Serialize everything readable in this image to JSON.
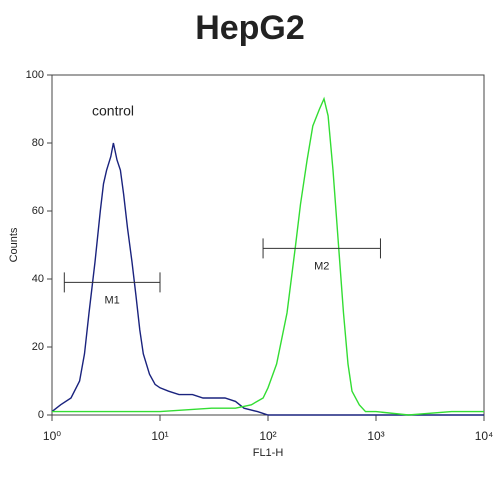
{
  "chart_data": {
    "type": "line",
    "title": "HepG2",
    "x_label": "FL1-H",
    "y_label": "Counts",
    "xscale": "log",
    "xlim": [
      1,
      10000
    ],
    "xticks": [
      {
        "value": 1,
        "label": "10⁰"
      },
      {
        "value": 10,
        "label": "10¹"
      },
      {
        "value": 100,
        "label": "10²"
      },
      {
        "value": 1000,
        "label": "10³"
      },
      {
        "value": 10000,
        "label": "10⁴"
      }
    ],
    "ylim": [
      0,
      100
    ],
    "yticks": [
      0,
      20,
      40,
      60,
      80,
      100
    ],
    "annotation": "control",
    "series": [
      {
        "color": "#1a237e",
        "x": [
          1,
          1.2,
          1.5,
          1.8,
          2.0,
          2.2,
          2.5,
          2.8,
          3.0,
          3.2,
          3.5,
          3.7,
          4.0,
          4.3,
          4.6,
          5,
          5.5,
          6,
          6.5,
          7,
          8,
          9,
          10,
          12,
          15,
          20,
          25,
          30,
          40,
          50,
          60,
          80,
          100,
          200,
          500,
          1000,
          10000
        ],
        "values": [
          1,
          3,
          5,
          10,
          18,
          30,
          45,
          60,
          68,
          72,
          76,
          80,
          75,
          72,
          65,
          55,
          45,
          35,
          25,
          18,
          12,
          9,
          8,
          7,
          6,
          6,
          5,
          5,
          5,
          4,
          2,
          1,
          0,
          0,
          0,
          0,
          0
        ]
      },
      {
        "color": "#33dd33",
        "x": [
          1,
          10,
          30,
          50,
          70,
          90,
          100,
          120,
          150,
          180,
          200,
          230,
          260,
          300,
          330,
          360,
          400,
          450,
          500,
          550,
          600,
          700,
          800,
          1000,
          2000,
          5000,
          10000
        ],
        "values": [
          1,
          1,
          2,
          2,
          3,
          5,
          8,
          15,
          30,
          50,
          62,
          75,
          85,
          90,
          93,
          88,
          72,
          50,
          30,
          15,
          7,
          3,
          1,
          1,
          0,
          1,
          1
        ]
      }
    ],
    "gates": [
      {
        "label": "M1",
        "x": [
          1.3,
          10
        ],
        "y": 39
      },
      {
        "label": "M2",
        "x": [
          90,
          1100
        ],
        "y": 49
      }
    ]
  }
}
